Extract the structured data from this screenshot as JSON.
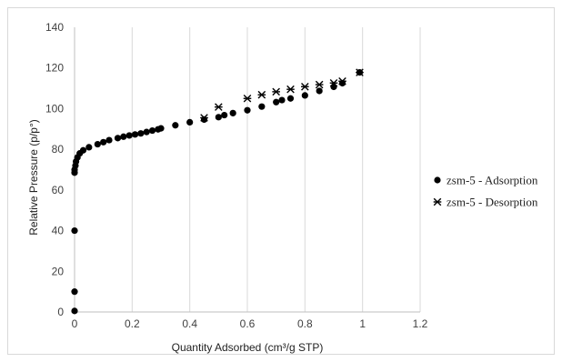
{
  "chart_data": {
    "type": "scatter",
    "title": "",
    "xlabel": "Quantity Adsorbed (cm³/g STP)",
    "ylabel": "Relative Pressure (p/p°)",
    "xlim": [
      0,
      1.2
    ],
    "ylim": [
      0,
      140
    ],
    "x_ticks": [
      "0",
      "0.2",
      "0.4",
      "0.6",
      "0.8",
      "1",
      "1.2"
    ],
    "y_ticks": [
      "0",
      "20",
      "40",
      "60",
      "80",
      "100",
      "120",
      "140"
    ],
    "grid": "vertical",
    "legend": "right",
    "series": [
      {
        "name": "zsm-5 - Adsorption",
        "marker": "circle",
        "color": "#000000",
        "points": [
          [
            0.0,
            0.5
          ],
          [
            0.0,
            10
          ],
          [
            0.0,
            40
          ],
          [
            0.0,
            68.5
          ],
          [
            0.0,
            70
          ],
          [
            0.003,
            72
          ],
          [
            0.005,
            74
          ],
          [
            0.01,
            76
          ],
          [
            0.018,
            78
          ],
          [
            0.03,
            79.5
          ],
          [
            0.05,
            81
          ],
          [
            0.08,
            82.5
          ],
          [
            0.1,
            83.5
          ],
          [
            0.12,
            84.5
          ],
          [
            0.15,
            85.5
          ],
          [
            0.17,
            86.2
          ],
          [
            0.19,
            86.8
          ],
          [
            0.21,
            87.3
          ],
          [
            0.23,
            87.8
          ],
          [
            0.25,
            88.5
          ],
          [
            0.27,
            89.2
          ],
          [
            0.29,
            89.8
          ],
          [
            0.3,
            90.3
          ],
          [
            0.35,
            91.8
          ],
          [
            0.4,
            93.3
          ],
          [
            0.45,
            94.6
          ],
          [
            0.5,
            95.8
          ],
          [
            0.52,
            96.8
          ],
          [
            0.55,
            97.8
          ],
          [
            0.6,
            99.2
          ],
          [
            0.65,
            101
          ],
          [
            0.7,
            103.2
          ],
          [
            0.72,
            104.2
          ],
          [
            0.75,
            105
          ],
          [
            0.8,
            106.5
          ],
          [
            0.85,
            108.7
          ],
          [
            0.9,
            110.7
          ],
          [
            0.93,
            112.5
          ],
          [
            0.99,
            117.8
          ]
        ]
      },
      {
        "name": "zsm-5 - Desorption",
        "marker": "asterisk",
        "color": "#000000",
        "points": [
          [
            0.99,
            117.8
          ],
          [
            0.93,
            113.5
          ],
          [
            0.9,
            112.6
          ],
          [
            0.85,
            111.8
          ],
          [
            0.8,
            110.8
          ],
          [
            0.75,
            109.5
          ],
          [
            0.7,
            108.3
          ],
          [
            0.65,
            106.8
          ],
          [
            0.6,
            105
          ],
          [
            0.5,
            100.8
          ],
          [
            0.45,
            95.5
          ]
        ]
      }
    ]
  }
}
